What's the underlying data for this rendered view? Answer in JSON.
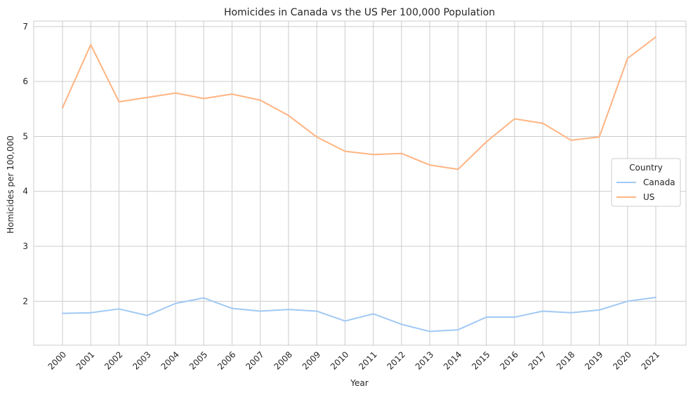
{
  "chart_data": {
    "type": "line",
    "title": "Homicides in Canada vs the US Per 100,000 Population",
    "xlabel": "Year",
    "ylabel": "Homicides per 100,000",
    "x": [
      "2000",
      "2001",
      "2002",
      "2003",
      "2004",
      "2005",
      "2006",
      "2007",
      "2008",
      "2009",
      "2010",
      "2011",
      "2012",
      "2013",
      "2014",
      "2015",
      "2016",
      "2017",
      "2018",
      "2019",
      "2020",
      "2021"
    ],
    "yticks": [
      2,
      3,
      4,
      5,
      6,
      7
    ],
    "ylim": [
      1.2,
      7.1
    ],
    "grid": true,
    "legend": {
      "title": "Country",
      "placement": "center-right"
    },
    "series": [
      {
        "name": "Canada",
        "color": "#a1c9f4",
        "values": [
          1.78,
          1.79,
          1.86,
          1.74,
          1.96,
          2.06,
          1.87,
          1.82,
          1.85,
          1.82,
          1.64,
          1.77,
          1.58,
          1.45,
          1.48,
          1.71,
          1.71,
          1.82,
          1.79,
          1.84,
          2.0,
          2.07
        ]
      },
      {
        "name": "US",
        "color": "#ffb482",
        "values": [
          5.52,
          6.67,
          5.63,
          5.71,
          5.79,
          5.69,
          5.77,
          5.66,
          5.38,
          4.99,
          4.73,
          4.67,
          4.69,
          4.48,
          4.4,
          4.9,
          5.32,
          5.24,
          4.93,
          4.99,
          6.42,
          6.81
        ]
      }
    ]
  }
}
